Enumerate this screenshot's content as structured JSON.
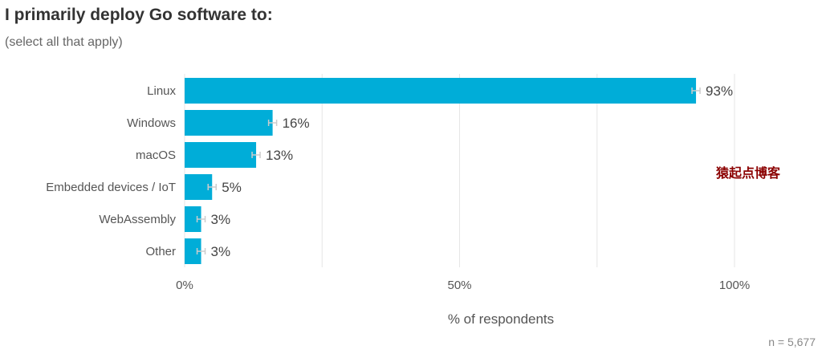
{
  "header": {
    "title": "I primarily deploy Go software to:",
    "subtitle": "(select all that apply)"
  },
  "chart_data": {
    "type": "bar",
    "orientation": "horizontal",
    "categories": [
      "Linux",
      "Windows",
      "macOS",
      "Embedded devices / IoT",
      "WebAssembly",
      "Other"
    ],
    "values": [
      93,
      16,
      13,
      5,
      3,
      3
    ],
    "value_labels": [
      "93%",
      "16%",
      "13%",
      "5%",
      "3%",
      "3%"
    ],
    "error_bars": true,
    "xlabel": "% of respondents",
    "xlim": [
      0,
      100
    ],
    "x_ticks": [
      0,
      50,
      100
    ],
    "x_tick_labels": [
      "0%",
      "50%",
      "100%"
    ],
    "grid": true,
    "bar_color": "#00add8",
    "error_bar_color": "#cccccc"
  },
  "footnote": {
    "sample_size": "n =  5,677"
  },
  "watermark": {
    "text": "猿起点博客"
  }
}
